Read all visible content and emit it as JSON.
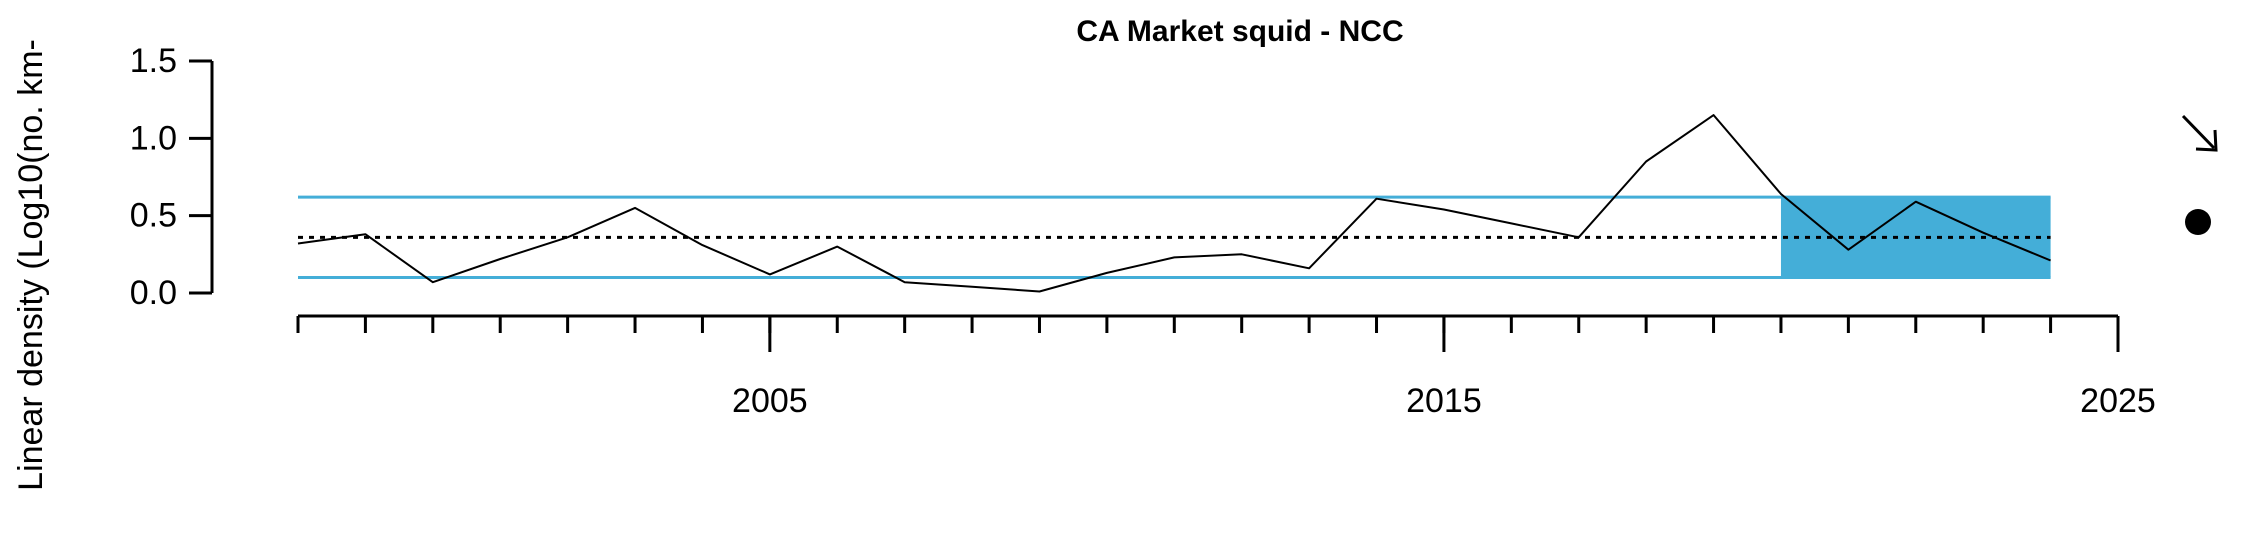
{
  "chart_data": {
    "type": "line",
    "title": "CA Market squid - NCC",
    "xlabel": "",
    "ylabel": "Linear density (Log10(no. km-",
    "x_ticks_labeled": [
      2005,
      2015,
      2025
    ],
    "y_ticks": [
      0.0,
      0.5,
      1.0,
      1.5
    ],
    "y_tick_labels": [
      "0.0",
      "0.5",
      "1.0",
      "1.5"
    ],
    "xlim": [
      1998,
      2025
    ],
    "ylim": [
      0,
      1.5
    ],
    "x_minor_ticks": [
      1998,
      1999,
      2000,
      2001,
      2002,
      2003,
      2004,
      2005,
      2006,
      2007,
      2008,
      2009,
      2010,
      2011,
      2012,
      2013,
      2014,
      2015,
      2016,
      2017,
      2018,
      2019,
      2020,
      2021,
      2022,
      2023,
      2024,
      2025
    ],
    "series": [
      {
        "x": [
          1998,
          1999,
          2000,
          2001,
          2002,
          2003,
          2004,
          2005,
          2006,
          2007,
          2008,
          2009,
          2010,
          2011,
          2012,
          2013,
          2014,
          2015,
          2016,
          2017,
          2018,
          2019,
          2020,
          2021,
          2022,
          2023,
          2024
        ],
        "values": [
          0.32,
          0.38,
          0.07,
          0.22,
          0.36,
          0.55,
          0.31,
          0.12,
          0.3,
          0.07,
          0.04,
          0.01,
          0.13,
          0.23,
          0.25,
          0.16,
          0.61,
          0.54,
          0.45,
          0.36,
          0.85,
          1.15,
          0.64,
          0.28,
          0.59,
          0.39,
          0.21
        ]
      }
    ],
    "reference_lines": {
      "mean": 0.36,
      "upper_sd": 0.62,
      "lower_sd": 0.1,
      "sd_color": "#44aed8",
      "mean_style": "dotted"
    },
    "shaded_region": {
      "x_start": 2020,
      "x_end": 2024,
      "y_low": 0.1,
      "y_high": 0.62,
      "color": "#44aed8"
    },
    "indicators": {
      "trend": "decreasing-arrow",
      "mean_status": "filled-circle"
    },
    "grid": false,
    "legend": "none"
  }
}
